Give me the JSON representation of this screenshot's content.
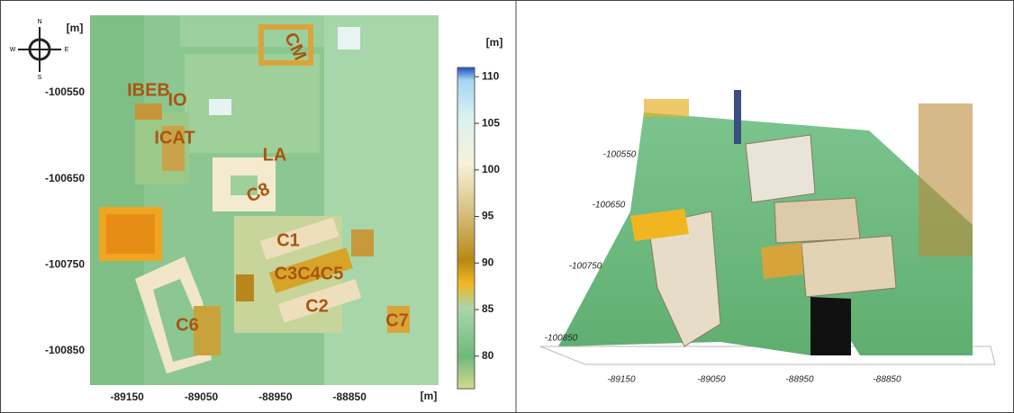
{
  "left_panel": {
    "compass": {
      "n": "N",
      "e": "E",
      "s": "S",
      "w": "W"
    },
    "y_unit": "[m]",
    "x_unit": "[m]",
    "xlim": [
      -89200,
      -88730
    ],
    "ylim": [
      -100890,
      -100460
    ],
    "xticks": [
      -89150,
      -89050,
      -88950,
      -88850
    ],
    "yticks": [
      -100550,
      -100650,
      -100750,
      -100850
    ],
    "building_labels": [
      "CM",
      "IBEB",
      "IO",
      "ICAT",
      "LA",
      "C8",
      "C1",
      "C3C4C5",
      "C2",
      "C6",
      "C7"
    ]
  },
  "colorbar": {
    "title": "[m]",
    "lim": [
      76.5,
      111
    ],
    "ticks": [
      80,
      85,
      90,
      95,
      100,
      105,
      110
    ]
  },
  "right_panel": {
    "xticks": [
      -89150,
      -89050,
      -88950,
      -88850
    ],
    "yticks": [
      -100550,
      -100650,
      -100750,
      -100850
    ]
  }
}
